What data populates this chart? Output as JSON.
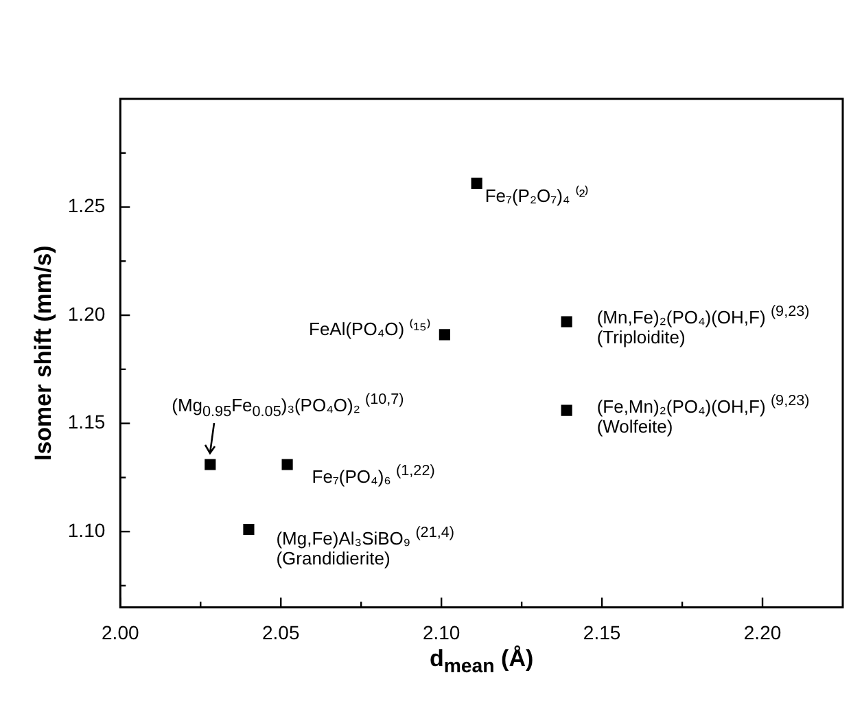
{
  "chart_data": {
    "type": "scatter",
    "xlabel": "d$_{mean}$ (Å)",
    "ylabel": "Isomer shift (mm/s)",
    "x": [
      2.111,
      2.101,
      2.139,
      2.139,
      2.028,
      2.052,
      2.04
    ],
    "values": [
      1.261,
      1.191,
      1.197,
      1.156,
      1.131,
      1.131,
      1.101
    ],
    "color": "#000000",
    "marker": "square",
    "xlim": [
      2.0,
      2.225
    ],
    "xticks": [
      {
        "value": 2.0,
        "label": "2.00"
      },
      {
        "value": 2.025,
        "label": null
      },
      2.05,
      {
        "value": 2.075,
        "label": null
      },
      {
        "value": 2.1,
        "label": "2.10"
      },
      {
        "value": 2.125,
        "label": null
      },
      2.15,
      {
        "value": 2.175,
        "label": null
      },
      {
        "value": 2.2,
        "label": "2.20"
      }
    ],
    "ylim": [
      1.065,
      1.3
    ],
    "yticks": [
      {
        "value": 1.075,
        "label": null
      },
      {
        "value": 1.1,
        "label": "1.10"
      },
      {
        "value": 1.125,
        "label": null
      },
      1.15,
      {
        "value": 1.175,
        "label": null
      },
      {
        "value": 1.2,
        "label": "1.20"
      },
      {
        "value": 1.225,
        "label": null
      },
      1.25,
      {
        "value": 1.275,
        "label": null
      }
    ],
    "annotations": [
      {
        "text": "Fe₇(P₂O₇)₄ ⁽²⁾",
        "x": 2.111,
        "y": 1.261
      },
      {
        "text": "FeAl(PO₄O) ⁽¹⁵⁾",
        "x": 2.101,
        "y": 1.191
      },
      {
        "text": "(Mn,Fe)₂(PO₄)(OH,F) $^{(9,23)}$",
        "x": 2.139,
        "y": 1.197
      },
      {
        "text": "(Triploidite)",
        "x": 2.139,
        "y": 1.197
      },
      {
        "text": "(Fe,Mn)₂(PO₄)(OH,F) $^{(9,23)}$",
        "x": 2.139,
        "y": 1.156
      },
      {
        "text": "(Wolfeite)",
        "x": 2.139,
        "y": 1.156
      },
      {
        "text": "(Mg$_{0.95}$Fe$_{0.05}$)₃(PO₄O)₂ $^{(10,7)}$",
        "x": 2.028,
        "y": 1.131
      },
      {
        "text": "Fe₇(PO₄)₆ $^{(1,22)}$",
        "x": 2.052,
        "y": 1.131
      },
      {
        "text": "(Mg,Fe)Al₃SiBO₉ $^{(21,4)}$",
        "x": 2.04,
        "y": 1.101
      },
      {
        "text": "(Grandidierite)",
        "x": 2.04,
        "y": 1.101
      }
    ]
  }
}
